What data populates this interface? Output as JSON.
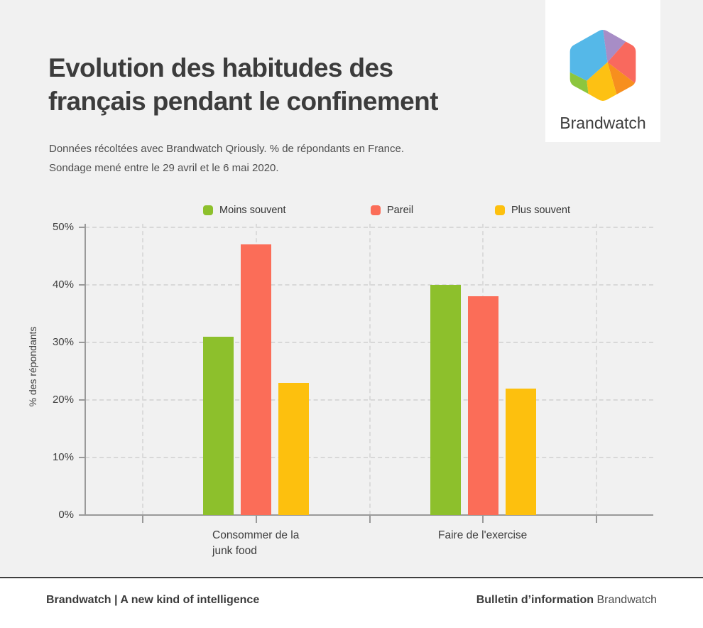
{
  "header": {
    "title_lines": [
      "Evolution des habitudes des",
      "français pendant le confinement"
    ],
    "subtitle_lines": [
      "Données récoltées avec Brandwatch Qriously. % de répondants en France.",
      "Sondage mené entre le 29 avril et le 6 mai 2020."
    ]
  },
  "logo_card": {
    "brand_name": "Brandwatch",
    "logo_colors": {
      "blue": "#55b8e8",
      "purple": "#a78dc6",
      "salmon": "#f9695e",
      "orange": "#f78f1e",
      "yellow": "#fdc113",
      "green": "#8cc63e"
    }
  },
  "chart_data": {
    "type": "bar",
    "title": "Evolution des habitudes des français pendant le confinement",
    "categories": [
      "Consommer de la junk food",
      "Faire de l'exercise"
    ],
    "category_label_lines": [
      [
        "Consommer de la",
        "junk food"
      ],
      [
        "Faire de l'exercise"
      ]
    ],
    "series": [
      {
        "name": "Moins souvent",
        "color": "#8dc02c",
        "values": [
          31,
          40
        ]
      },
      {
        "name": "Pareil",
        "color": "#fb6d58",
        "values": [
          47,
          38
        ]
      },
      {
        "name": "Plus souvent",
        "color": "#fdc00e",
        "values": [
          23,
          22
        ]
      }
    ],
    "ylabel": "% des répondants",
    "yticks": [
      "0%",
      "10%",
      "20%",
      "30%",
      "40%",
      "50%"
    ],
    "ylim": [
      0,
      50
    ],
    "grid": "dashed",
    "legend_position": "top"
  },
  "footer": {
    "left_text": "Brandwatch | A new kind of intelligence",
    "right_bold": "Bulletin d’information",
    "right_regular": "Brandwatch"
  }
}
